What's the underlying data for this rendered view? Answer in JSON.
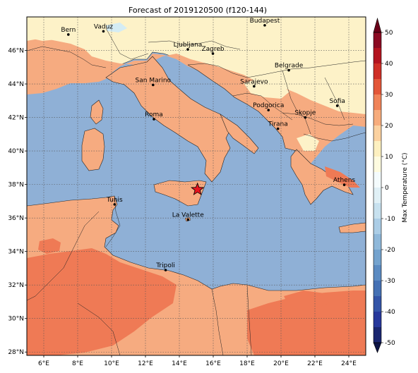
{
  "figure": {
    "title": "Forecast of 2019120500 (f120-144)"
  },
  "map": {
    "lon_range": [
      5,
      25
    ],
    "lat_range": [
      27.8,
      48
    ],
    "lon_ticks": [
      {
        "value": 6,
        "label": "6°E"
      },
      {
        "value": 8,
        "label": "8°E"
      },
      {
        "value": 10,
        "label": "10°E"
      },
      {
        "value": 12,
        "label": "12°E"
      },
      {
        "value": 14,
        "label": "14°E"
      },
      {
        "value": 16,
        "label": "16°E"
      },
      {
        "value": 18,
        "label": "18°E"
      },
      {
        "value": 20,
        "label": "20°E"
      },
      {
        "value": 22,
        "label": "22°E"
      },
      {
        "value": 24,
        "label": "24°E"
      }
    ],
    "lat_ticks": [
      {
        "value": 28,
        "label": "28°N"
      },
      {
        "value": 30,
        "label": "30°N"
      },
      {
        "value": 32,
        "label": "32°N"
      },
      {
        "value": 34,
        "label": "34°N"
      },
      {
        "value": 36,
        "label": "36°N"
      },
      {
        "value": 38,
        "label": "38°N"
      },
      {
        "value": 40,
        "label": "40°N"
      },
      {
        "value": 42,
        "label": "42°N"
      },
      {
        "value": 44,
        "label": "44°N"
      },
      {
        "value": 46,
        "label": "46°N"
      }
    ],
    "gridlines": true,
    "colors": {
      "sea": "#8fb0d6",
      "land_warm": "#f6ab80",
      "land_hot": "#ef7a55",
      "land_mild": "#fdf2c8",
      "land_cool": "#d4ecf4",
      "border": "#222222"
    },
    "cities": [
      {
        "name": "Bern",
        "lon": 7.45,
        "lat": 46.95
      },
      {
        "name": "Vaduz",
        "lon": 9.52,
        "lat": 47.14
      },
      {
        "name": "Budapest",
        "lon": 19.04,
        "lat": 47.5
      },
      {
        "name": "Ljubljana",
        "lon": 14.5,
        "lat": 46.06
      },
      {
        "name": "Zagreb",
        "lon": 15.98,
        "lat": 45.81
      },
      {
        "name": "Belgrade",
        "lon": 20.46,
        "lat": 44.82
      },
      {
        "name": "San Marino",
        "lon": 12.45,
        "lat": 43.94
      },
      {
        "name": "Sarajevo",
        "lon": 18.41,
        "lat": 43.86
      },
      {
        "name": "Sofia",
        "lon": 23.32,
        "lat": 42.7
      },
      {
        "name": "Podgorica",
        "lon": 19.26,
        "lat": 42.44
      },
      {
        "name": "Skopje",
        "lon": 21.43,
        "lat": 42.0
      },
      {
        "name": "Roma",
        "lon": 12.5,
        "lat": 41.9
      },
      {
        "name": "Tirana",
        "lon": 19.82,
        "lat": 41.33
      },
      {
        "name": "Athens",
        "lon": 23.73,
        "lat": 37.98
      },
      {
        "name": "Tunis",
        "lon": 10.18,
        "lat": 36.81
      },
      {
        "name": "La Valette",
        "lon": 14.51,
        "lat": 35.9
      },
      {
        "name": "Tripoli",
        "lon": 13.19,
        "lat": 32.89
      }
    ],
    "marker": {
      "type": "star",
      "lon": 15.07,
      "lat": 37.7,
      "color": "#e8141e"
    }
  },
  "colorbar": {
    "label": "Max Temperature (°C)",
    "ticks": [
      "-50",
      "-40",
      "-30",
      "-20",
      "-10",
      "0",
      "10",
      "20",
      "30",
      "40",
      "50"
    ],
    "levels": [
      {
        "from": -50,
        "to": -45,
        "color": "#1a2670"
      },
      {
        "from": -45,
        "to": -40,
        "color": "#27389c"
      },
      {
        "from": -40,
        "to": -35,
        "color": "#3455a8"
      },
      {
        "from": -35,
        "to": -30,
        "color": "#4571b4"
      },
      {
        "from": -30,
        "to": -25,
        "color": "#5b8bc2"
      },
      {
        "from": -25,
        "to": -20,
        "color": "#74a3ce"
      },
      {
        "from": -20,
        "to": -15,
        "color": "#8fb8da"
      },
      {
        "from": -15,
        "to": -10,
        "color": "#abcde6"
      },
      {
        "from": -10,
        "to": -5,
        "color": "#c7e1ef"
      },
      {
        "from": -5,
        "to": 0,
        "color": "#e0f0f6"
      },
      {
        "from": 0,
        "to": 5,
        "color": "#f4fbfd"
      },
      {
        "from": 5,
        "to": 10,
        "color": "#fefbe0"
      },
      {
        "from": 10,
        "to": 15,
        "color": "#fdf0c0"
      },
      {
        "from": 15,
        "to": 20,
        "color": "#fbd1a0"
      },
      {
        "from": 20,
        "to": 25,
        "color": "#f7ac7c"
      },
      {
        "from": 25,
        "to": 30,
        "color": "#f08358"
      },
      {
        "from": 30,
        "to": 35,
        "color": "#e35638"
      },
      {
        "from": 35,
        "to": 40,
        "color": "#cf2f26"
      },
      {
        "from": 40,
        "to": 45,
        "color": "#b3141f"
      },
      {
        "from": 45,
        "to": 50,
        "color": "#8b0a22"
      }
    ],
    "extend_low_color": "#0d1446",
    "extend_high_color": "#6a0018"
  }
}
